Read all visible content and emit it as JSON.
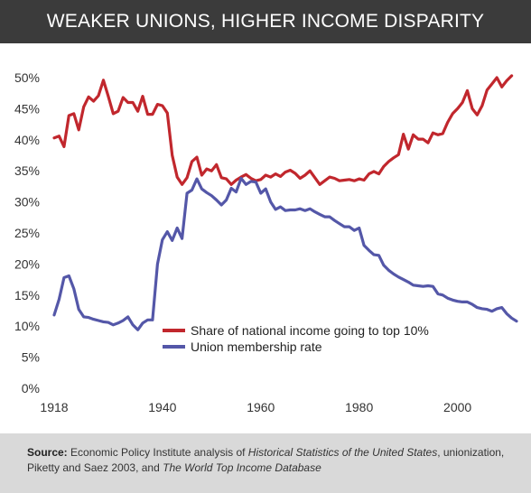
{
  "title": "WEAKER UNIONS, HIGHER INCOME DISPARITY",
  "source": {
    "label": "Source:",
    "part1": "Economic Policy Institute analysis of",
    "italic1": "Historical Statistics of the United States",
    "part2": ", unionization, Piketty and Saez 2003, and",
    "italic2": "The World Top Income Database"
  },
  "colors": {
    "income": "#c1272d",
    "union": "#5457a8",
    "header": "#3b3b3b",
    "footer": "#d9d9d9"
  },
  "chart_data": {
    "type": "line",
    "title": "WEAKER UNIONS, HIGHER INCOME DISPARITY",
    "xlabel": "",
    "ylabel": "",
    "xlim": [
      1918,
      2012
    ],
    "ylim": [
      0,
      50
    ],
    "x_ticks": [
      "1918",
      "1940",
      "1960",
      "1980",
      "2000"
    ],
    "x_tick_values": [
      1918,
      1940,
      1960,
      1980,
      2000
    ],
    "y_ticks": [
      "0%",
      "5%",
      "10%",
      "15%",
      "20%",
      "25%",
      "30%",
      "35%",
      "40%",
      "45%",
      "50%"
    ],
    "y_tick_values": [
      0,
      5,
      10,
      15,
      20,
      25,
      30,
      35,
      40,
      45,
      50
    ],
    "grid": false,
    "legend_position": "lower-center",
    "series": [
      {
        "name": "Share of national income going to top 10%",
        "points": [
          [
            1918,
            40.3
          ],
          [
            1919,
            40.6
          ],
          [
            1920,
            38.9
          ],
          [
            1921,
            43.9
          ],
          [
            1922,
            44.2
          ],
          [
            1923,
            41.6
          ],
          [
            1924,
            45.3
          ],
          [
            1925,
            46.9
          ],
          [
            1926,
            46.2
          ],
          [
            1927,
            47.1
          ],
          [
            1928,
            49.6
          ],
          [
            1929,
            47.0
          ],
          [
            1930,
            44.2
          ],
          [
            1931,
            44.6
          ],
          [
            1932,
            46.8
          ],
          [
            1933,
            46.0
          ],
          [
            1934,
            46.0
          ],
          [
            1935,
            44.6
          ],
          [
            1936,
            47.0
          ],
          [
            1937,
            44.1
          ],
          [
            1938,
            44.1
          ],
          [
            1939,
            45.7
          ],
          [
            1940,
            45.5
          ],
          [
            1941,
            44.3
          ],
          [
            1942,
            37.5
          ],
          [
            1943,
            34.0
          ],
          [
            1944,
            32.8
          ],
          [
            1945,
            33.9
          ],
          [
            1946,
            36.5
          ],
          [
            1947,
            37.2
          ],
          [
            1948,
            34.3
          ],
          [
            1949,
            35.3
          ],
          [
            1950,
            35.0
          ],
          [
            1951,
            36.0
          ],
          [
            1952,
            33.9
          ],
          [
            1953,
            33.7
          ],
          [
            1954,
            32.8
          ],
          [
            1955,
            33.5
          ],
          [
            1956,
            34.0
          ],
          [
            1957,
            34.4
          ],
          [
            1958,
            33.8
          ],
          [
            1959,
            33.4
          ],
          [
            1960,
            33.6
          ],
          [
            1961,
            34.3
          ],
          [
            1962,
            34.0
          ],
          [
            1963,
            34.5
          ],
          [
            1964,
            34.1
          ],
          [
            1965,
            34.8
          ],
          [
            1966,
            35.1
          ],
          [
            1967,
            34.6
          ],
          [
            1968,
            33.8
          ],
          [
            1969,
            34.3
          ],
          [
            1970,
            35.0
          ],
          [
            1971,
            33.9
          ],
          [
            1972,
            32.8
          ],
          [
            1973,
            33.4
          ],
          [
            1974,
            34.0
          ],
          [
            1975,
            33.8
          ],
          [
            1976,
            33.4
          ],
          [
            1977,
            33.5
          ],
          [
            1978,
            33.6
          ],
          [
            1979,
            33.4
          ],
          [
            1980,
            33.7
          ],
          [
            1981,
            33.5
          ],
          [
            1982,
            34.5
          ],
          [
            1983,
            34.9
          ],
          [
            1984,
            34.5
          ],
          [
            1985,
            35.7
          ],
          [
            1986,
            36.5
          ],
          [
            1987,
            37.1
          ],
          [
            1988,
            37.6
          ],
          [
            1989,
            40.9
          ],
          [
            1990,
            38.5
          ],
          [
            1991,
            40.8
          ],
          [
            1992,
            40.1
          ],
          [
            1993,
            40.1
          ],
          [
            1994,
            39.5
          ],
          [
            1995,
            41.1
          ],
          [
            1996,
            40.8
          ],
          [
            1997,
            41.0
          ],
          [
            1998,
            42.8
          ],
          [
            1999,
            44.2
          ],
          [
            2000,
            45.0
          ],
          [
            2001,
            46.0
          ],
          [
            2002,
            47.9
          ],
          [
            2003,
            45.0
          ],
          [
            2004,
            44.0
          ],
          [
            2005,
            45.5
          ],
          [
            2006,
            48.0
          ],
          [
            2007,
            49.0
          ],
          [
            2008,
            50.0
          ],
          [
            2009,
            48.5
          ],
          [
            2010,
            49.5
          ],
          [
            2011,
            50.3
          ]
        ]
      },
      {
        "name": "Union membership rate",
        "points": [
          [
            1918,
            11.8
          ],
          [
            1919,
            14.3
          ],
          [
            1920,
            17.8
          ],
          [
            1921,
            18.1
          ],
          [
            1922,
            16.0
          ],
          [
            1923,
            12.7
          ],
          [
            1924,
            11.5
          ],
          [
            1925,
            11.4
          ],
          [
            1926,
            11.1
          ],
          [
            1927,
            10.9
          ],
          [
            1928,
            10.7
          ],
          [
            1929,
            10.6
          ],
          [
            1930,
            10.2
          ],
          [
            1931,
            10.5
          ],
          [
            1932,
            10.9
          ],
          [
            1933,
            11.5
          ],
          [
            1934,
            10.2
          ],
          [
            1935,
            9.4
          ],
          [
            1936,
            10.5
          ],
          [
            1937,
            11.0
          ],
          [
            1938,
            11.0
          ],
          [
            1939,
            20.0
          ],
          [
            1940,
            23.9
          ],
          [
            1941,
            25.2
          ],
          [
            1942,
            23.8
          ],
          [
            1943,
            25.8
          ],
          [
            1944,
            24.1
          ],
          [
            1945,
            31.4
          ],
          [
            1946,
            31.9
          ],
          [
            1947,
            33.7
          ],
          [
            1948,
            32.1
          ],
          [
            1949,
            31.5
          ],
          [
            1950,
            31.0
          ],
          [
            1951,
            30.3
          ],
          [
            1952,
            29.5
          ],
          [
            1953,
            30.3
          ],
          [
            1954,
            32.2
          ],
          [
            1955,
            31.6
          ],
          [
            1956,
            33.8
          ],
          [
            1957,
            32.8
          ],
          [
            1958,
            33.3
          ],
          [
            1959,
            33.2
          ],
          [
            1960,
            31.4
          ],
          [
            1961,
            32.1
          ],
          [
            1962,
            30.0
          ],
          [
            1963,
            28.8
          ],
          [
            1964,
            29.2
          ],
          [
            1965,
            28.6
          ],
          [
            1966,
            28.7
          ],
          [
            1967,
            28.7
          ],
          [
            1968,
            28.9
          ],
          [
            1969,
            28.6
          ],
          [
            1970,
            28.9
          ],
          [
            1971,
            28.4
          ],
          [
            1972,
            28.0
          ],
          [
            1973,
            27.6
          ],
          [
            1974,
            27.6
          ],
          [
            1975,
            27.0
          ],
          [
            1976,
            26.5
          ],
          [
            1977,
            26.0
          ],
          [
            1978,
            26.0
          ],
          [
            1979,
            25.4
          ],
          [
            1980,
            25.8
          ],
          [
            1981,
            23.0
          ],
          [
            1982,
            22.2
          ],
          [
            1983,
            21.5
          ],
          [
            1984,
            21.4
          ],
          [
            1985,
            19.8
          ],
          [
            1986,
            19.0
          ],
          [
            1987,
            18.4
          ],
          [
            1988,
            17.9
          ],
          [
            1989,
            17.5
          ],
          [
            1990,
            17.1
          ],
          [
            1991,
            16.6
          ],
          [
            1992,
            16.5
          ],
          [
            1993,
            16.4
          ],
          [
            1994,
            16.5
          ],
          [
            1995,
            16.4
          ],
          [
            1996,
            15.2
          ],
          [
            1997,
            15.0
          ],
          [
            1998,
            14.5
          ],
          [
            1999,
            14.2
          ],
          [
            2000,
            14.0
          ],
          [
            2001,
            13.9
          ],
          [
            2002,
            13.9
          ],
          [
            2003,
            13.5
          ],
          [
            2004,
            13.0
          ],
          [
            2005,
            12.8
          ],
          [
            2006,
            12.7
          ],
          [
            2007,
            12.4
          ],
          [
            2008,
            12.8
          ],
          [
            2009,
            13.0
          ],
          [
            2010,
            12.0
          ],
          [
            2011,
            11.3
          ],
          [
            2012,
            10.8
          ]
        ]
      }
    ]
  }
}
